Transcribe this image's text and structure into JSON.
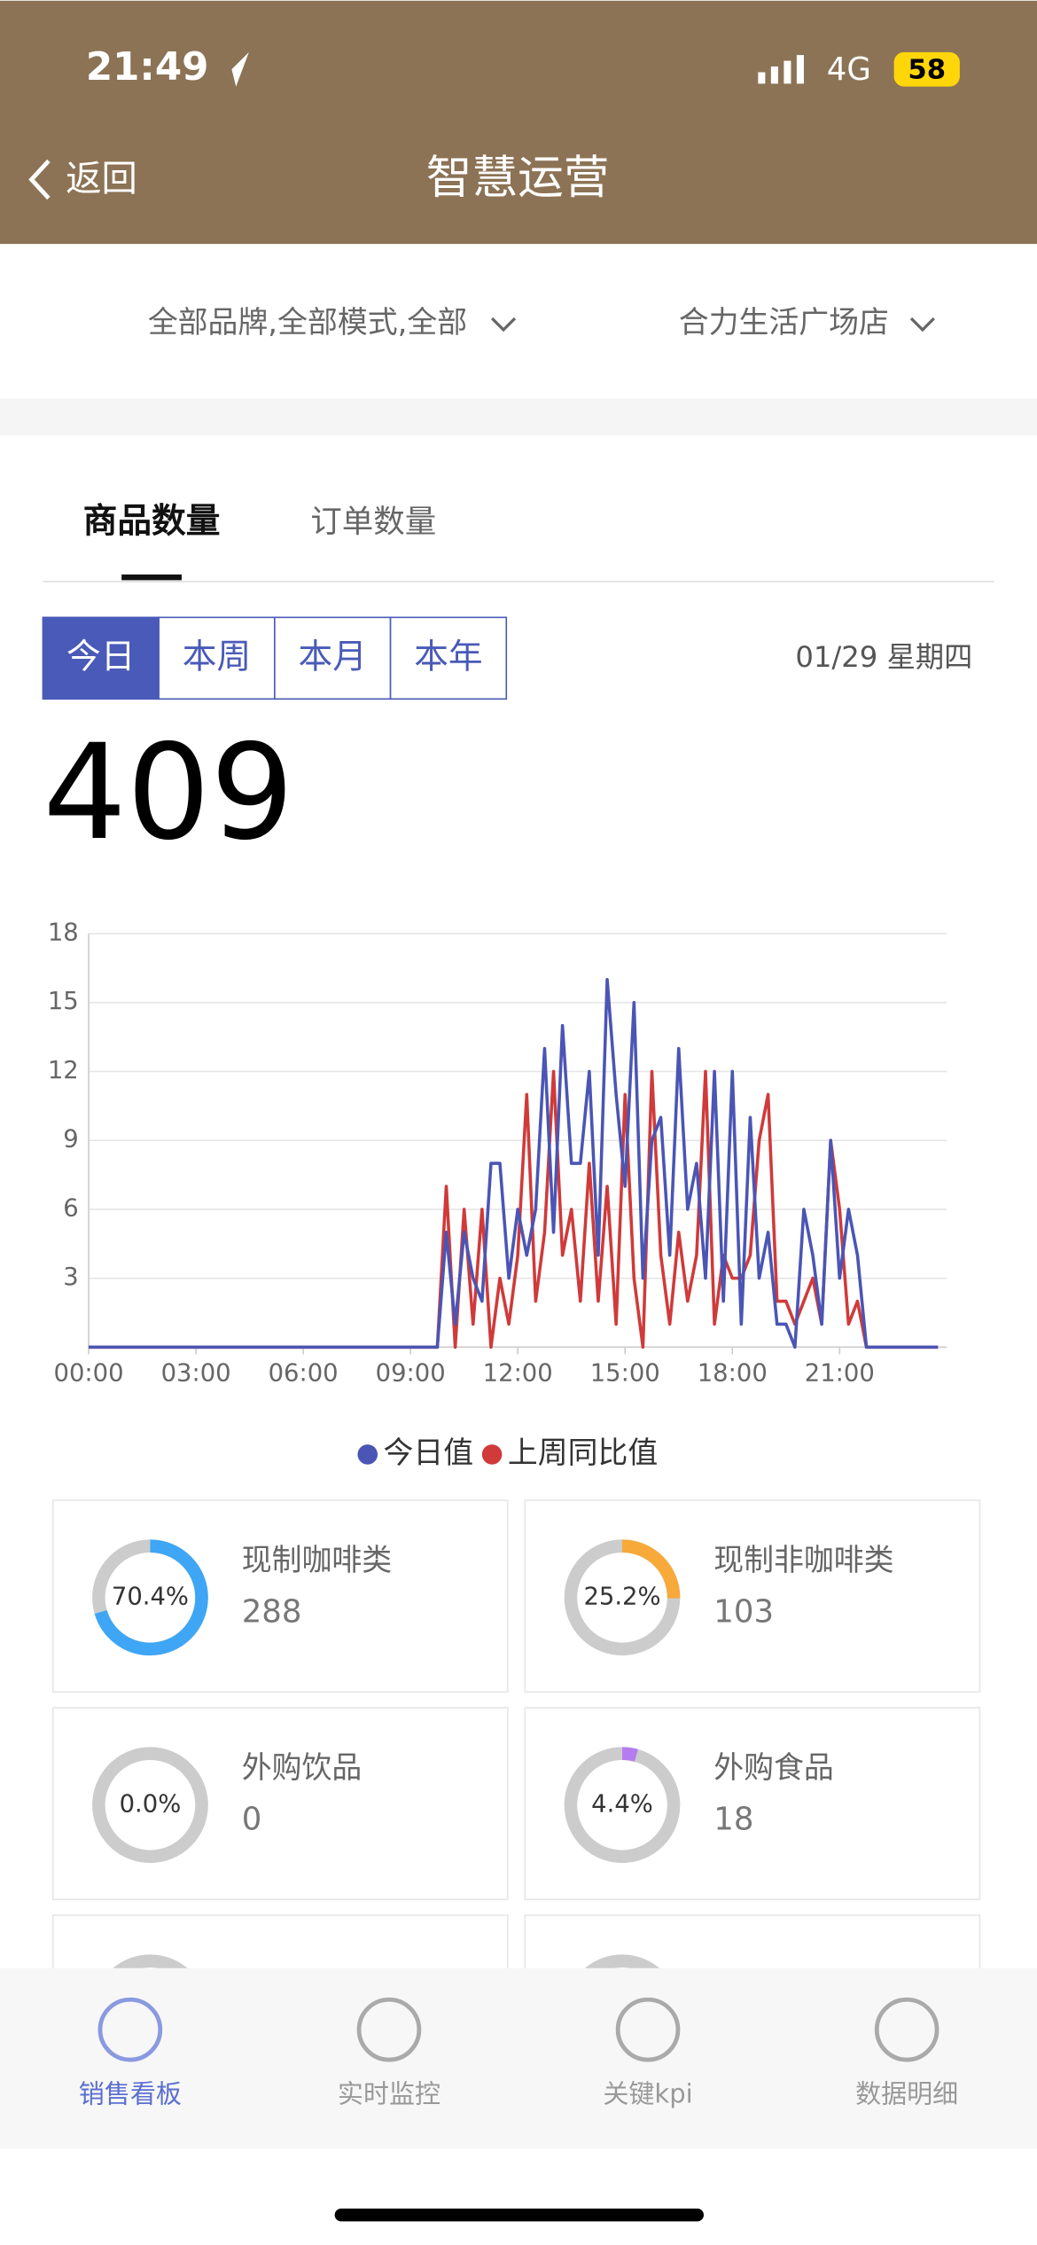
{
  "status_bar": {
    "time": "21:49",
    "network": "4G",
    "battery": "58"
  },
  "header": {
    "back": "返回",
    "title": "智慧运营"
  },
  "filters": [
    "全部品牌,全部模式,全部",
    "合力生活广场店"
  ],
  "tabs": [
    "商品数量",
    "订单数量"
  ],
  "periods": [
    "今日",
    "本周",
    "本月",
    "本年"
  ],
  "date": "01/29 星期四",
  "total": "409",
  "chart_data": {
    "type": "line",
    "x": [
      0,
      9.5,
      9.75,
      10,
      10.25,
      10.5,
      10.75,
      11,
      11.25,
      11.5,
      11.75,
      12,
      12.25,
      12.5,
      12.75,
      13,
      13.25,
      13.5,
      13.75,
      14,
      14.25,
      14.5,
      14.75,
      15,
      15.25,
      15.5,
      15.75,
      16,
      16.25,
      16.5,
      16.75,
      17,
      17.25,
      17.5,
      17.75,
      18,
      18.25,
      18.5,
      18.75,
      19,
      19.25,
      19.5,
      19.75,
      20,
      20.25,
      20.5,
      20.75,
      21,
      21.25,
      21.5,
      21.75,
      22,
      23.75
    ],
    "series": [
      {
        "name": "今日值",
        "color": "#4a55b5",
        "values": [
          0,
          0,
          0,
          5,
          1,
          5,
          3,
          2,
          8,
          8,
          3,
          6,
          4,
          6,
          13,
          5,
          14,
          8,
          8,
          12,
          4,
          16,
          11,
          7,
          15,
          3,
          9,
          10,
          4,
          13,
          6,
          8,
          3,
          12,
          2,
          12,
          1,
          10,
          3,
          5,
          1,
          1,
          0,
          6,
          4,
          1,
          9,
          3,
          6,
          4,
          0,
          0,
          0
        ]
      },
      {
        "name": "上周同比值",
        "color": "#d03a3a",
        "values": [
          0,
          0,
          0,
          7,
          0,
          6,
          1,
          6,
          0,
          3,
          1,
          4,
          11,
          2,
          5,
          12,
          4,
          6,
          2,
          8,
          2,
          7,
          1,
          11,
          3,
          0,
          12,
          4,
          1,
          5,
          2,
          4,
          12,
          1,
          4,
          3,
          3,
          4,
          9,
          11,
          2,
          2,
          1,
          2,
          3,
          1,
          9,
          6,
          1,
          2,
          0,
          0,
          0
        ]
      }
    ],
    "xlim": [
      0,
      24
    ],
    "xticks": [
      {
        "value": 0,
        "label": "00:00"
      },
      {
        "value": 3,
        "label": "03:00"
      },
      {
        "value": 6,
        "label": "06:00"
      },
      {
        "value": 9,
        "label": "09:00"
      },
      {
        "value": 12,
        "label": "12:00"
      },
      {
        "value": 15,
        "label": "15:00"
      },
      {
        "value": 18,
        "label": "18:00"
      },
      {
        "value": 21,
        "label": "21:00"
      }
    ],
    "ylim": [
      0,
      18
    ],
    "yticks": [
      3,
      6,
      9,
      12,
      15,
      18
    ],
    "grid": true
  },
  "cards": [
    {
      "name": "现制咖啡类",
      "percent": 70.4,
      "percent_label": "70.4%",
      "count": "288",
      "color": "#3ea6f5"
    },
    {
      "name": "现制非咖啡类",
      "percent": 25.2,
      "percent_label": "25.2%",
      "count": "103",
      "color": "#f7a93a"
    },
    {
      "name": "外购饮品",
      "percent": 0.0,
      "percent_label": "0.0%",
      "count": "0",
      "color": "#999999"
    },
    {
      "name": "外购食品",
      "percent": 4.4,
      "percent_label": "4.4%",
      "count": "18",
      "color": "#b57cf0"
    }
  ],
  "nav": [
    "销售看板",
    "实时监控",
    "关键kpi",
    "数据明细"
  ]
}
